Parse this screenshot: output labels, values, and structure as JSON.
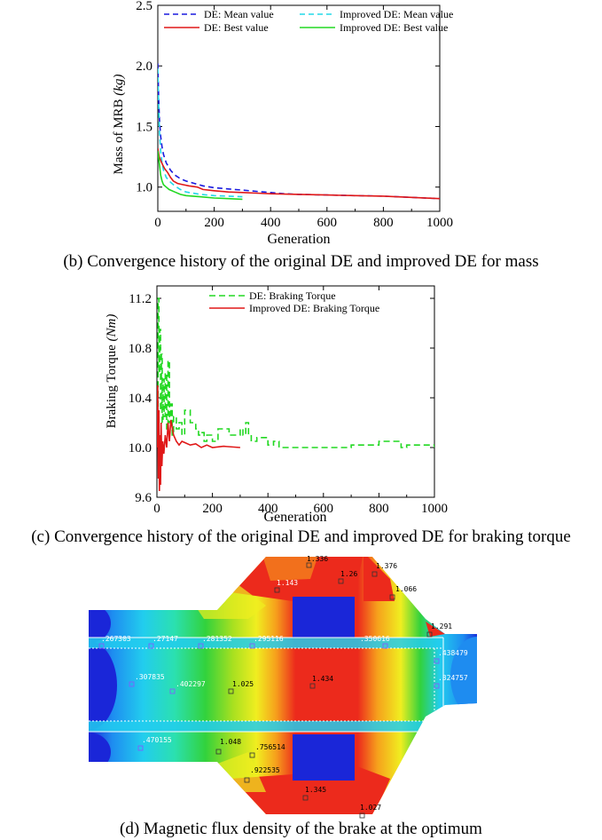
{
  "figure_b": {
    "caption": "(b) Convergence history of the original DE and improved DE for mass",
    "chart_data": {
      "type": "line",
      "title": "",
      "xlabel": "Generation",
      "ylabel": "Mass of MRB",
      "ylabel_unit": "(kg)",
      "xlim": [
        0,
        1000
      ],
      "ylim": [
        0.8,
        2.5
      ],
      "xticks": [
        0,
        200,
        400,
        600,
        800,
        1000
      ],
      "yticks": [
        1.0,
        1.5,
        2.0,
        2.5
      ],
      "ytick_labels": [
        "1.0",
        "1.5",
        "2.0",
        "2.5"
      ],
      "legend": "top",
      "series": [
        {
          "name": "DE: Mean value",
          "color": "#1a1adf",
          "dash": "6,4",
          "x": [
            0,
            3,
            6,
            10,
            15,
            20,
            30,
            45,
            60,
            80,
            100,
            130,
            160,
            200,
            250,
            300,
            350,
            400,
            450,
            500,
            600,
            700,
            800,
            900,
            1000
          ],
          "y": [
            2.02,
            1.72,
            1.55,
            1.42,
            1.33,
            1.27,
            1.2,
            1.14,
            1.1,
            1.07,
            1.05,
            1.03,
            1.01,
            0.995,
            0.985,
            0.975,
            0.965,
            0.955,
            0.945,
            0.94,
            0.935,
            0.93,
            0.925,
            0.915,
            0.905
          ]
        },
        {
          "name": "Improved DE: Mean value",
          "color": "#22d8e8",
          "dash": "6,4",
          "x": [
            0,
            3,
            6,
            10,
            15,
            20,
            30,
            45,
            60,
            80,
            100,
            150,
            200,
            250,
            300
          ],
          "y": [
            1.98,
            1.65,
            1.45,
            1.3,
            1.2,
            1.14,
            1.08,
            1.04,
            1.01,
            0.98,
            0.96,
            0.94,
            0.93,
            0.925,
            0.92
          ]
        },
        {
          "name": "DE: Best value",
          "color": "#e01818",
          "dash": "",
          "x": [
            0,
            5,
            10,
            18,
            25,
            35,
            45,
            55,
            70,
            90,
            110,
            140,
            160,
            200,
            250,
            300,
            350,
            400,
            500,
            600,
            700,
            800,
            900,
            1000
          ],
          "y": [
            1.32,
            1.25,
            1.22,
            1.18,
            1.15,
            1.12,
            1.08,
            1.05,
            1.03,
            1.02,
            1.01,
            1.0,
            0.98,
            0.97,
            0.96,
            0.955,
            0.95,
            0.945,
            0.94,
            0.935,
            0.93,
            0.925,
            0.915,
            0.905
          ]
        },
        {
          "name": "Improved DE: Best value",
          "color": "#22d822",
          "dash": "",
          "x": [
            0,
            5,
            10,
            15,
            20,
            30,
            40,
            60,
            80,
            100,
            150,
            200,
            250,
            300
          ],
          "y": [
            1.3,
            1.2,
            1.1,
            1.05,
            1.02,
            1.0,
            0.98,
            0.96,
            0.94,
            0.93,
            0.92,
            0.91,
            0.905,
            0.9
          ]
        }
      ]
    }
  },
  "figure_c": {
    "caption": "(c) Convergence history of the original DE and improved DE for braking torque",
    "chart_data": {
      "type": "line",
      "title": "",
      "xlabel": "Generation",
      "ylabel": "Braking Torque",
      "ylabel_unit": "(Nm)",
      "xlim": [
        0,
        1000
      ],
      "ylim": [
        9.6,
        11.3
      ],
      "xticks": [
        0,
        200,
        400,
        600,
        800,
        1000
      ],
      "yticks": [
        9.6,
        10.0,
        10.4,
        10.8,
        11.2
      ],
      "ytick_labels": [
        "9.6",
        "10.0",
        "10.4",
        "10.8",
        "11.2"
      ],
      "legend": "top",
      "series": [
        {
          "name": "DE: Braking Torque",
          "color": "#22d822",
          "dash": "7,4",
          "x": [
            0,
            4,
            7,
            10,
            13,
            16,
            19,
            22,
            26,
            30,
            35,
            40,
            45,
            50,
            55,
            60,
            70,
            80,
            90,
            100,
            110,
            120,
            130,
            140,
            150,
            160,
            170,
            180,
            200,
            220,
            240,
            260,
            280,
            300,
            310,
            320,
            330,
            340,
            360,
            380,
            400,
            420,
            440,
            500,
            600,
            700,
            760,
            800,
            840,
            880,
            900,
            960,
            1000
          ],
          "y": [
            10.1,
            11.2,
            10.6,
            10.95,
            10.3,
            10.75,
            10.2,
            10.55,
            10.25,
            10.6,
            10.15,
            10.7,
            10.2,
            10.35,
            10.1,
            10.25,
            10.15,
            10.2,
            10.1,
            10.3,
            10.3,
            10.2,
            10.2,
            10.15,
            10.1,
            10.12,
            10.05,
            10.1,
            10.05,
            10.15,
            10.15,
            10.1,
            10.1,
            10.15,
            10.1,
            10.2,
            10.1,
            10.05,
            10.08,
            10.08,
            10.02,
            10.05,
            10.0,
            10.0,
            10.0,
            10.02,
            10.02,
            10.05,
            10.05,
            10.0,
            10.02,
            10.02,
            10.0
          ]
        },
        {
          "name": "Improved DE: Braking Torque",
          "color": "#e01818",
          "dash": "",
          "x": [
            0,
            3,
            5,
            7,
            9,
            11,
            13,
            15,
            18,
            21,
            25,
            30,
            35,
            40,
            45,
            50,
            60,
            70,
            80,
            90,
            100,
            120,
            140,
            160,
            180,
            200,
            240,
            300
          ],
          "y": [
            10.0,
            10.5,
            9.75,
            10.3,
            9.65,
            10.1,
            9.7,
            10.2,
            9.85,
            10.05,
            9.95,
            10.1,
            10.0,
            10.2,
            10.05,
            10.22,
            10.1,
            10.05,
            10.02,
            10.05,
            10.04,
            10.02,
            10.03,
            10.0,
            10.02,
            10.0,
            10.01,
            10.0
          ]
        }
      ]
    }
  },
  "figure_d": {
    "caption": "(d) Magnetic flux density of the brake at the optimum",
    "labels": [
      {
        "text": "1.336",
        "color": "#000"
      },
      {
        "text": "1.26",
        "color": "#000"
      },
      {
        "text": "1.376",
        "color": "#000"
      },
      {
        "text": "1.143",
        "color": "#fff"
      },
      {
        "text": "1.066",
        "color": "#000"
      },
      {
        "text": "1.291",
        "color": "#000"
      },
      {
        "text": ".267303",
        "color": "#fff"
      },
      {
        "text": ".27147",
        "color": "#fff"
      },
      {
        "text": ".281352",
        "color": "#fff"
      },
      {
        "text": ".295116",
        "color": "#fff"
      },
      {
        "text": ".350616",
        "color": "#fff"
      },
      {
        "text": ".438479",
        "color": "#fff"
      },
      {
        "text": ".307835",
        "color": "#fff"
      },
      {
        "text": ".402297",
        "color": "#fff"
      },
      {
        "text": "1.025",
        "color": "#000"
      },
      {
        "text": "1.434",
        "color": "#000"
      },
      {
        "text": ".324757",
        "color": "#fff"
      },
      {
        "text": ".470155",
        "color": "#fff"
      },
      {
        "text": "1.048",
        "color": "#000"
      },
      {
        "text": ".756514",
        "color": "#000"
      },
      {
        "text": ".922535",
        "color": "#000"
      },
      {
        "text": "1.345",
        "color": "#000"
      },
      {
        "text": "1.027",
        "color": "#000"
      }
    ]
  }
}
